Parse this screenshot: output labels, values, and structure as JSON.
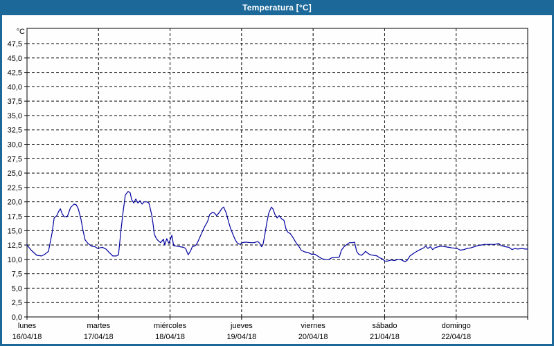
{
  "window": {
    "title": "Temperatura [°C]"
  },
  "colors": {
    "titlebar_bg": "#1B6899",
    "titlebar_text": "#FFFFFF",
    "window_border": "#1B6899",
    "plot_bg": "#FEFEFE",
    "plot_frame": "#000000",
    "gridline": "#000000",
    "series_line": "#0000A0",
    "label_text": "#000000"
  },
  "chart_data": {
    "type": "line",
    "title": "Temperatura [°C]",
    "ylabel_unit": "°C",
    "legend": "none",
    "grid": "dashed horizontal every 2.5 °C, dashed vertical at each day boundary",
    "ylim": [
      0,
      50.2
    ],
    "y_tick_step": 2.5,
    "y_ticks": [
      0,
      2.5,
      5,
      7.5,
      10,
      12.5,
      15,
      17.5,
      20,
      22.5,
      25,
      27.5,
      30,
      32.5,
      35,
      37.5,
      40,
      42.5,
      45,
      47.5
    ],
    "y_tick_labels": [
      "0,0",
      "2,5",
      "5,0",
      "7,5",
      "10,0",
      "12,5",
      "15,0",
      "17,5",
      "20,0",
      "22,5",
      "25,0",
      "27,5",
      "30,0",
      "32,5",
      "35,0",
      "37,5",
      "40,0",
      "42,5",
      "45,0",
      "47,5"
    ],
    "x_range_hours": [
      0,
      168
    ],
    "x_days": [
      {
        "weekday": "lunes",
        "date": "16/04/18"
      },
      {
        "weekday": "martes",
        "date": "17/04/18"
      },
      {
        "weekday": "miércoles",
        "date": "18/04/18"
      },
      {
        "weekday": "jueves",
        "date": "19/04/18"
      },
      {
        "weekday": "viernes",
        "date": "20/04/18"
      },
      {
        "weekday": "sábado",
        "date": "21/04/18"
      },
      {
        "weekday": "domingo",
        "date": "22/04/18"
      }
    ],
    "series": [
      {
        "name": "Temperatura",
        "color": "#0000A0",
        "points_hours_degC": [
          [
            0,
            12.5
          ],
          [
            1.4,
            11.6
          ],
          [
            3.3,
            10.7
          ],
          [
            4.9,
            10.6
          ],
          [
            6,
            10.9
          ],
          [
            7.2,
            11.4
          ],
          [
            8.4,
            14.6
          ],
          [
            9.1,
            17.2
          ],
          [
            10,
            17.6
          ],
          [
            10.7,
            18.4
          ],
          [
            11.2,
            18.8
          ],
          [
            11.8,
            17.9
          ],
          [
            12.5,
            17.4
          ],
          [
            13.5,
            17.4
          ],
          [
            14.6,
            19
          ],
          [
            15.8,
            19.6
          ],
          [
            16.5,
            19.5
          ],
          [
            17.2,
            18.8
          ],
          [
            18.1,
            17
          ],
          [
            18.8,
            15
          ],
          [
            19.5,
            13.4
          ],
          [
            20.4,
            12.8
          ],
          [
            21.6,
            12.3
          ],
          [
            22.8,
            12.2
          ],
          [
            23.7,
            11.9
          ],
          [
            24.4,
            12
          ],
          [
            25.3,
            12.1
          ],
          [
            26.5,
            11.8
          ],
          [
            27.6,
            11.2
          ],
          [
            28.8,
            10.6
          ],
          [
            30,
            10.6
          ],
          [
            30.7,
            10.8
          ],
          [
            31.6,
            15.4
          ],
          [
            32.3,
            18.5
          ],
          [
            33,
            21.2
          ],
          [
            33.9,
            21.8
          ],
          [
            34.6,
            21.6
          ],
          [
            35.1,
            20.4
          ],
          [
            35.8,
            19.8
          ],
          [
            36.5,
            20.5
          ],
          [
            37.2,
            19.8
          ],
          [
            37.9,
            20.2
          ],
          [
            38.6,
            19.6
          ],
          [
            39.3,
            20
          ],
          [
            40.2,
            20
          ],
          [
            40.9,
            19.8
          ],
          [
            41.3,
            19
          ],
          [
            41.8,
            17.8
          ],
          [
            42.3,
            16.2
          ],
          [
            42.7,
            14.4
          ],
          [
            43.4,
            13.6
          ],
          [
            44.1,
            13.2
          ],
          [
            44.8,
            12.9
          ],
          [
            45.8,
            13.5
          ],
          [
            46.2,
            12.5
          ],
          [
            46.9,
            13.6
          ],
          [
            47.6,
            12.8
          ],
          [
            48.6,
            14.2
          ],
          [
            49.2,
            12.4
          ],
          [
            50.2,
            12.3
          ],
          [
            51.3,
            12.2
          ],
          [
            52.5,
            12.1
          ],
          [
            53.2,
            11.9
          ],
          [
            54.1,
            10.8
          ],
          [
            54.8,
            11.4
          ],
          [
            55.5,
            12.2
          ],
          [
            56.5,
            12.4
          ],
          [
            57.1,
            12.8
          ],
          [
            58.3,
            14.2
          ],
          [
            59.5,
            15.6
          ],
          [
            60.6,
            16.6
          ],
          [
            61.3,
            17.8
          ],
          [
            62.3,
            18.2
          ],
          [
            63,
            18
          ],
          [
            63.6,
            17.6
          ],
          [
            64.6,
            18.2
          ],
          [
            65.3,
            18.8
          ],
          [
            66,
            19.1
          ],
          [
            66.9,
            18
          ],
          [
            67.6,
            16.6
          ],
          [
            68.3,
            15.4
          ],
          [
            69.2,
            14.2
          ],
          [
            69.9,
            13.4
          ],
          [
            70.6,
            12.8
          ],
          [
            71.5,
            12.6
          ],
          [
            72.2,
            12.9
          ],
          [
            73.4,
            13
          ],
          [
            75,
            12.9
          ],
          [
            76.2,
            12.9
          ],
          [
            77.4,
            13.1
          ],
          [
            78.1,
            12.8
          ],
          [
            78.7,
            12.2
          ],
          [
            79.2,
            12.6
          ],
          [
            79.7,
            14
          ],
          [
            80.4,
            16.2
          ],
          [
            81.1,
            18
          ],
          [
            82,
            19.1
          ],
          [
            82.5,
            18.8
          ],
          [
            83.2,
            17.8
          ],
          [
            83.9,
            17.2
          ],
          [
            84.6,
            17.6
          ],
          [
            85.5,
            17
          ],
          [
            86.2,
            16.8
          ],
          [
            86.9,
            15.3
          ],
          [
            87.6,
            14.7
          ],
          [
            88.3,
            14.5
          ],
          [
            89,
            14
          ],
          [
            89.7,
            13.4
          ],
          [
            90.4,
            12.8
          ],
          [
            91.3,
            12.2
          ],
          [
            92,
            11.6
          ],
          [
            93.1,
            11.3
          ],
          [
            94.3,
            11.2
          ],
          [
            95.5,
            10.9
          ],
          [
            96.6,
            10.9
          ],
          [
            97.8,
            10.5
          ],
          [
            99,
            10.1
          ],
          [
            100.1,
            10
          ],
          [
            101.3,
            10
          ],
          [
            102.4,
            10.3
          ],
          [
            103.6,
            10.3
          ],
          [
            104.8,
            10.4
          ],
          [
            105.5,
            11.6
          ],
          [
            106.4,
            12.2
          ],
          [
            107.1,
            12.5
          ],
          [
            108.2,
            12.9
          ],
          [
            109.2,
            12.9
          ],
          [
            109.9,
            13
          ],
          [
            110.6,
            11.4
          ],
          [
            111.3,
            10.9
          ],
          [
            112.2,
            10.7
          ],
          [
            112.9,
            11
          ],
          [
            113.6,
            11.4
          ],
          [
            114.5,
            11
          ],
          [
            115.2,
            10.8
          ],
          [
            116.4,
            10.7
          ],
          [
            117.5,
            10.6
          ],
          [
            118.2,
            10.3
          ],
          [
            119.2,
            10.1
          ],
          [
            120.1,
            9.7
          ],
          [
            121,
            9.7
          ],
          [
            122.2,
            9.9
          ],
          [
            123.3,
            9.8
          ],
          [
            124.5,
            10
          ],
          [
            125.7,
            9.9
          ],
          [
            126.8,
            9.6
          ],
          [
            127.5,
            9.8
          ],
          [
            128.5,
            10.6
          ],
          [
            129.6,
            11
          ],
          [
            130.8,
            11.4
          ],
          [
            131.9,
            11.7
          ],
          [
            133.1,
            12
          ],
          [
            133.8,
            12.3
          ],
          [
            134.5,
            11.9
          ],
          [
            135.4,
            12.2
          ],
          [
            136.1,
            11.7
          ],
          [
            136.8,
            12
          ],
          [
            138,
            12.2
          ],
          [
            139.1,
            12.3
          ],
          [
            140.3,
            12.2
          ],
          [
            141.5,
            12.1
          ],
          [
            142.6,
            12
          ],
          [
            144.3,
            11.9
          ],
          [
            145.4,
            11.6
          ],
          [
            146.6,
            11.7
          ],
          [
            147.7,
            11.9
          ],
          [
            148.9,
            12
          ],
          [
            150.1,
            12.2
          ],
          [
            151.2,
            12.4
          ],
          [
            152.4,
            12.5
          ],
          [
            153.5,
            12.6
          ],
          [
            154.7,
            12.6
          ],
          [
            155.9,
            12.6
          ],
          [
            157,
            12.6
          ],
          [
            157.7,
            12.7
          ],
          [
            158.3,
            12.75
          ],
          [
            159.1,
            12.4
          ],
          [
            159.8,
            12.3
          ],
          [
            160.5,
            12.2
          ],
          [
            161.7,
            12.1
          ],
          [
            162.8,
            11.7
          ],
          [
            163.7,
            11.9
          ],
          [
            164.7,
            11.8
          ],
          [
            166,
            11.9
          ],
          [
            167.1,
            11.8
          ],
          [
            167.9,
            11.8
          ]
        ]
      }
    ]
  }
}
